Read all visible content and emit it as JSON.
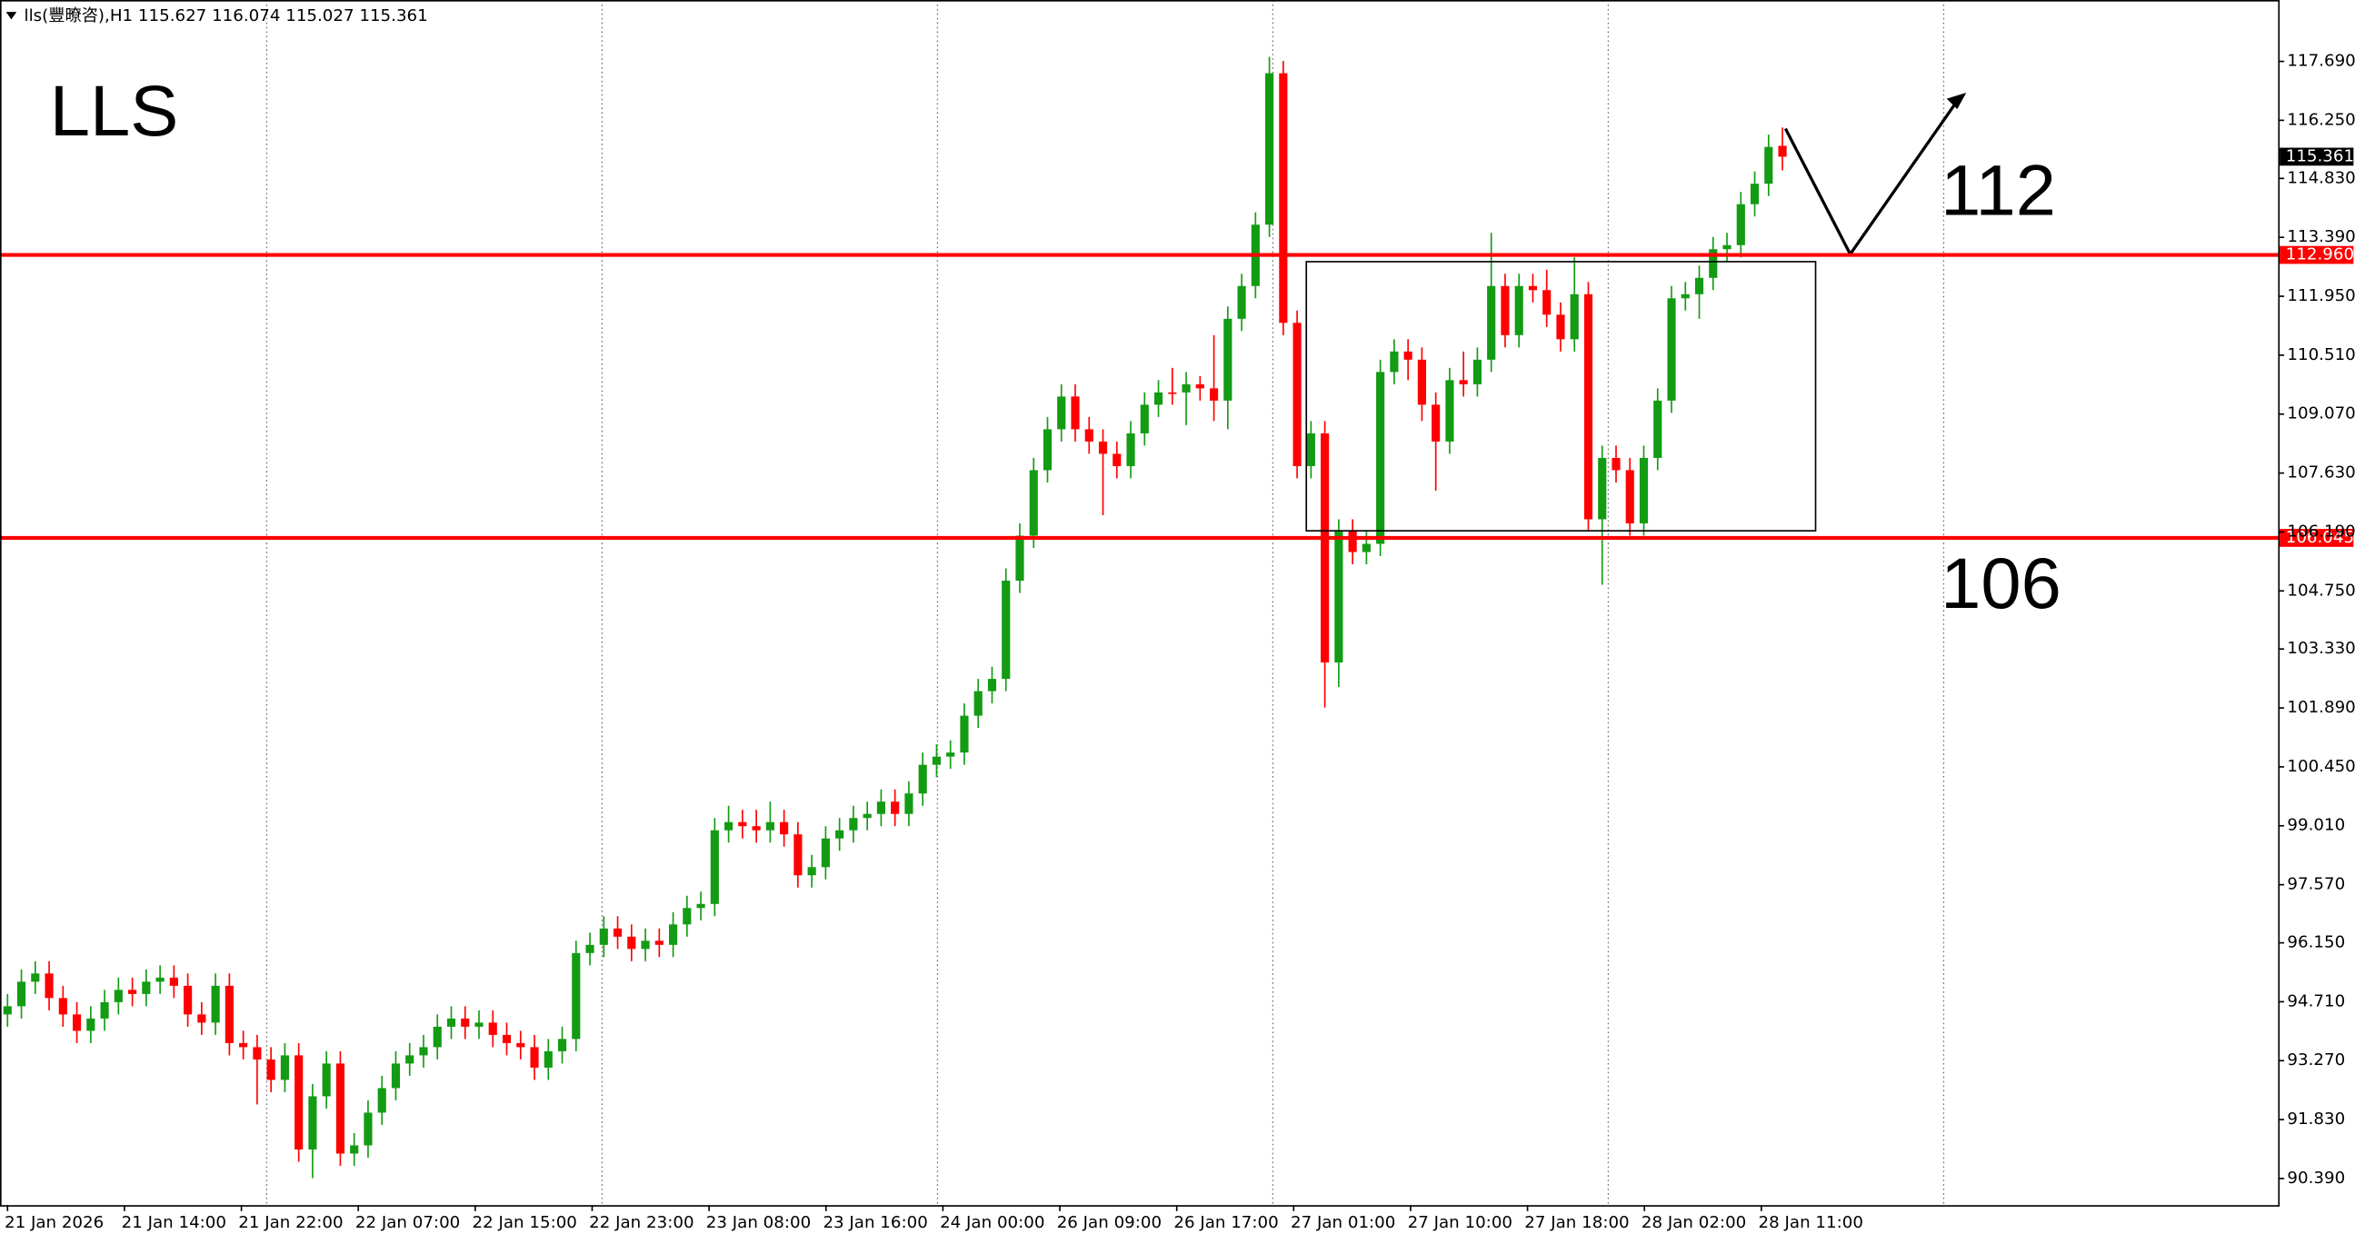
{
  "chart_data": {
    "type": "candlestick",
    "header": "lls(豐暸咨),H1  115.627 116.074 115.027 115.361",
    "title": "LLS",
    "annotations": [
      "112",
      "106"
    ],
    "bull_color": "#139b13",
    "bear_color": "#ff0000",
    "ylim": [
      89.74,
      119.19
    ],
    "yticks": [
      {
        "value": 117.69,
        "label": "117.690"
      },
      {
        "value": 116.25,
        "label": "116.250"
      },
      {
        "value": 114.83,
        "label": "114.830"
      },
      {
        "value": 113.39,
        "label": "113.390"
      },
      {
        "value": 111.95,
        "label": "111.950"
      },
      {
        "value": 110.51,
        "label": "110.510"
      },
      {
        "value": 109.07,
        "label": "109.070"
      },
      {
        "value": 107.63,
        "label": "107.630"
      },
      {
        "value": 106.19,
        "label": "106.190"
      },
      {
        "value": 104.75,
        "label": "104.750"
      },
      {
        "value": 103.33,
        "label": "103.330"
      },
      {
        "value": 101.89,
        "label": "101.890"
      },
      {
        "value": 100.45,
        "label": "100.450"
      },
      {
        "value": 99.01,
        "label": "99.010"
      },
      {
        "value": 97.57,
        "label": "97.570"
      },
      {
        "value": 96.15,
        "label": "96.150"
      },
      {
        "value": 94.71,
        "label": "94.710"
      },
      {
        "value": 93.27,
        "label": "93.270"
      },
      {
        "value": 91.83,
        "label": "91.830"
      },
      {
        "value": 90.39,
        "label": "90.390"
      }
    ],
    "levels": [
      {
        "value": 112.96,
        "label": "112.960",
        "color": "#ff0000"
      },
      {
        "value": 106.045,
        "label": "106.045",
        "color": "#ff0000"
      }
    ],
    "current_price": {
      "value": 115.361,
      "label": "115.361"
    },
    "x_labels": [
      "21 Jan 2026",
      "21 Jan 14:00",
      "21 Jan 22:00",
      "22 Jan 07:00",
      "22 Jan 15:00",
      "22 Jan 23:00",
      "23 Jan 08:00",
      "23 Jan 16:00",
      "24 Jan 00:00",
      "26 Jan 09:00",
      "26 Jan 17:00",
      "27 Jan 01:00",
      "27 Jan 10:00",
      "27 Jan 18:00",
      "28 Jan 02:00",
      "28 Jan 11:00"
    ],
    "ohlc": [
      [
        94.4,
        94.9,
        94.1,
        94.6
      ],
      [
        94.6,
        95.5,
        94.3,
        95.2
      ],
      [
        95.2,
        95.7,
        94.9,
        95.4
      ],
      [
        95.4,
        95.7,
        94.5,
        94.8
      ],
      [
        94.8,
        95.1,
        94.1,
        94.4
      ],
      [
        94.4,
        94.7,
        93.7,
        94.0
      ],
      [
        94.0,
        94.6,
        93.7,
        94.3
      ],
      [
        94.3,
        95.0,
        94.0,
        94.7
      ],
      [
        94.7,
        95.3,
        94.4,
        95.0
      ],
      [
        95.0,
        95.3,
        94.6,
        94.9
      ],
      [
        94.9,
        95.5,
        94.6,
        95.2
      ],
      [
        95.2,
        95.6,
        94.9,
        95.3
      ],
      [
        95.3,
        95.6,
        94.8,
        95.1
      ],
      [
        95.1,
        95.4,
        94.1,
        94.4
      ],
      [
        94.4,
        94.7,
        93.9,
        94.2
      ],
      [
        94.2,
        95.4,
        93.9,
        95.1
      ],
      [
        95.1,
        95.4,
        93.4,
        93.7
      ],
      [
        93.7,
        94.0,
        93.3,
        93.6
      ],
      [
        93.6,
        93.9,
        92.2,
        93.3
      ],
      [
        93.3,
        93.6,
        92.5,
        92.8
      ],
      [
        92.8,
        93.7,
        92.5,
        93.4
      ],
      [
        93.4,
        93.7,
        90.8,
        91.1
      ],
      [
        91.1,
        92.7,
        90.4,
        92.4
      ],
      [
        92.4,
        93.5,
        92.1,
        93.2
      ],
      [
        93.2,
        93.5,
        90.7,
        91.0
      ],
      [
        91.0,
        91.5,
        90.7,
        91.2
      ],
      [
        91.2,
        92.3,
        90.9,
        92.0
      ],
      [
        92.0,
        92.9,
        91.7,
        92.6
      ],
      [
        92.6,
        93.5,
        92.3,
        93.2
      ],
      [
        93.2,
        93.7,
        92.9,
        93.4
      ],
      [
        93.4,
        93.9,
        93.1,
        93.6
      ],
      [
        93.6,
        94.4,
        93.3,
        94.1
      ],
      [
        94.1,
        94.6,
        93.8,
        94.3
      ],
      [
        94.3,
        94.6,
        93.8,
        94.1
      ],
      [
        94.1,
        94.5,
        93.8,
        94.2
      ],
      [
        94.2,
        94.5,
        93.6,
        93.9
      ],
      [
        93.9,
        94.2,
        93.4,
        93.7
      ],
      [
        93.7,
        94.0,
        93.3,
        93.6
      ],
      [
        93.6,
        93.9,
        92.8,
        93.1
      ],
      [
        93.1,
        93.8,
        92.8,
        93.5
      ],
      [
        93.5,
        94.1,
        93.2,
        93.8
      ],
      [
        93.8,
        96.2,
        93.5,
        95.9
      ],
      [
        95.9,
        96.4,
        95.6,
        96.1
      ],
      [
        96.1,
        96.8,
        95.8,
        96.5
      ],
      [
        96.5,
        96.8,
        96.0,
        96.3
      ],
      [
        96.3,
        96.6,
        95.7,
        96.0
      ],
      [
        96.0,
        96.5,
        95.7,
        96.2
      ],
      [
        96.2,
        96.5,
        95.8,
        96.1
      ],
      [
        96.1,
        96.9,
        95.8,
        96.6
      ],
      [
        96.6,
        97.3,
        96.3,
        97.0
      ],
      [
        97.0,
        97.4,
        96.7,
        97.1
      ],
      [
        97.1,
        99.2,
        96.8,
        98.9
      ],
      [
        98.9,
        99.5,
        98.6,
        99.1
      ],
      [
        99.1,
        99.4,
        98.7,
        99.0
      ],
      [
        99.0,
        99.4,
        98.6,
        98.9
      ],
      [
        98.9,
        99.6,
        98.6,
        99.1
      ],
      [
        99.1,
        99.4,
        98.5,
        98.8
      ],
      [
        98.8,
        99.1,
        97.5,
        97.8
      ],
      [
        97.8,
        98.3,
        97.5,
        98.0
      ],
      [
        98.0,
        99.0,
        97.7,
        98.7
      ],
      [
        98.7,
        99.2,
        98.4,
        98.9
      ],
      [
        98.9,
        99.5,
        98.6,
        99.2
      ],
      [
        99.2,
        99.6,
        98.9,
        99.3
      ],
      [
        99.3,
        99.9,
        99.0,
        99.6
      ],
      [
        99.6,
        99.9,
        99.0,
        99.3
      ],
      [
        99.3,
        100.1,
        99.0,
        99.8
      ],
      [
        99.8,
        100.8,
        99.5,
        100.5
      ],
      [
        100.5,
        101.0,
        100.2,
        100.7
      ],
      [
        100.7,
        101.1,
        100.4,
        100.8
      ],
      [
        100.8,
        102.0,
        100.5,
        101.7
      ],
      [
        101.7,
        102.6,
        101.4,
        102.3
      ],
      [
        102.3,
        102.9,
        102.0,
        102.6
      ],
      [
        102.6,
        105.3,
        102.3,
        105.0
      ],
      [
        105.0,
        106.4,
        104.7,
        106.1
      ],
      [
        106.1,
        108.0,
        105.8,
        107.7
      ],
      [
        107.7,
        109.0,
        107.4,
        108.7
      ],
      [
        108.7,
        109.8,
        108.4,
        109.5
      ],
      [
        109.5,
        109.8,
        108.4,
        108.7
      ],
      [
        108.7,
        109.0,
        108.1,
        108.4
      ],
      [
        108.4,
        108.7,
        106.6,
        108.1
      ],
      [
        108.1,
        108.4,
        107.5,
        107.8
      ],
      [
        107.8,
        108.9,
        107.5,
        108.6
      ],
      [
        108.6,
        109.6,
        108.3,
        109.3
      ],
      [
        109.3,
        109.9,
        109.0,
        109.6
      ],
      [
        109.6,
        110.2,
        109.3,
        109.6
      ],
      [
        109.6,
        110.1,
        108.8,
        109.8
      ],
      [
        109.8,
        110.0,
        109.4,
        109.7
      ],
      [
        109.7,
        111.0,
        108.9,
        109.4
      ],
      [
        109.4,
        111.7,
        108.7,
        111.4
      ],
      [
        111.4,
        112.5,
        111.1,
        112.2
      ],
      [
        112.2,
        114.0,
        111.9,
        113.7
      ],
      [
        113.7,
        117.8,
        113.4,
        117.4
      ],
      [
        117.4,
        117.7,
        111.0,
        111.3
      ],
      [
        111.3,
        111.6,
        107.5,
        107.8
      ],
      [
        107.8,
        108.9,
        107.5,
        108.6
      ],
      [
        108.6,
        108.9,
        101.9,
        103.0
      ],
      [
        103.0,
        106.5,
        102.4,
        106.2
      ],
      [
        106.2,
        106.5,
        105.4,
        105.7
      ],
      [
        105.7,
        106.2,
        105.4,
        105.9
      ],
      [
        105.9,
        110.4,
        105.6,
        110.1
      ],
      [
        110.1,
        110.9,
        109.8,
        110.6
      ],
      [
        110.6,
        110.9,
        109.9,
        110.4
      ],
      [
        110.4,
        110.7,
        108.9,
        109.3
      ],
      [
        109.3,
        109.6,
        107.2,
        108.4
      ],
      [
        108.4,
        110.2,
        108.1,
        109.9
      ],
      [
        109.9,
        110.6,
        109.5,
        109.8
      ],
      [
        109.8,
        110.7,
        109.5,
        110.4
      ],
      [
        110.4,
        113.5,
        110.1,
        112.2
      ],
      [
        112.2,
        112.5,
        110.7,
        111.0
      ],
      [
        111.0,
        112.5,
        110.7,
        112.2
      ],
      [
        112.2,
        112.5,
        111.8,
        112.1
      ],
      [
        112.1,
        112.6,
        111.2,
        111.5
      ],
      [
        111.5,
        111.8,
        110.6,
        110.9
      ],
      [
        110.9,
        112.9,
        110.6,
        112.0
      ],
      [
        112.0,
        112.3,
        106.2,
        106.5
      ],
      [
        106.5,
        108.3,
        104.9,
        108.0
      ],
      [
        108.0,
        108.3,
        107.4,
        107.7
      ],
      [
        107.7,
        108.0,
        106.1,
        106.4
      ],
      [
        106.4,
        108.3,
        106.1,
        108.0
      ],
      [
        108.0,
        109.7,
        107.7,
        109.4
      ],
      [
        109.4,
        112.2,
        109.1,
        111.9
      ],
      [
        111.9,
        112.3,
        111.6,
        112.0
      ],
      [
        112.0,
        112.7,
        111.4,
        112.4
      ],
      [
        112.4,
        113.4,
        112.1,
        113.1
      ],
      [
        113.1,
        113.5,
        112.8,
        113.2
      ],
      [
        113.2,
        114.5,
        112.9,
        114.2
      ],
      [
        114.2,
        115.0,
        113.9,
        114.7
      ],
      [
        114.7,
        115.9,
        114.4,
        115.6
      ],
      [
        115.627,
        116.074,
        115.027,
        115.361
      ]
    ]
  }
}
